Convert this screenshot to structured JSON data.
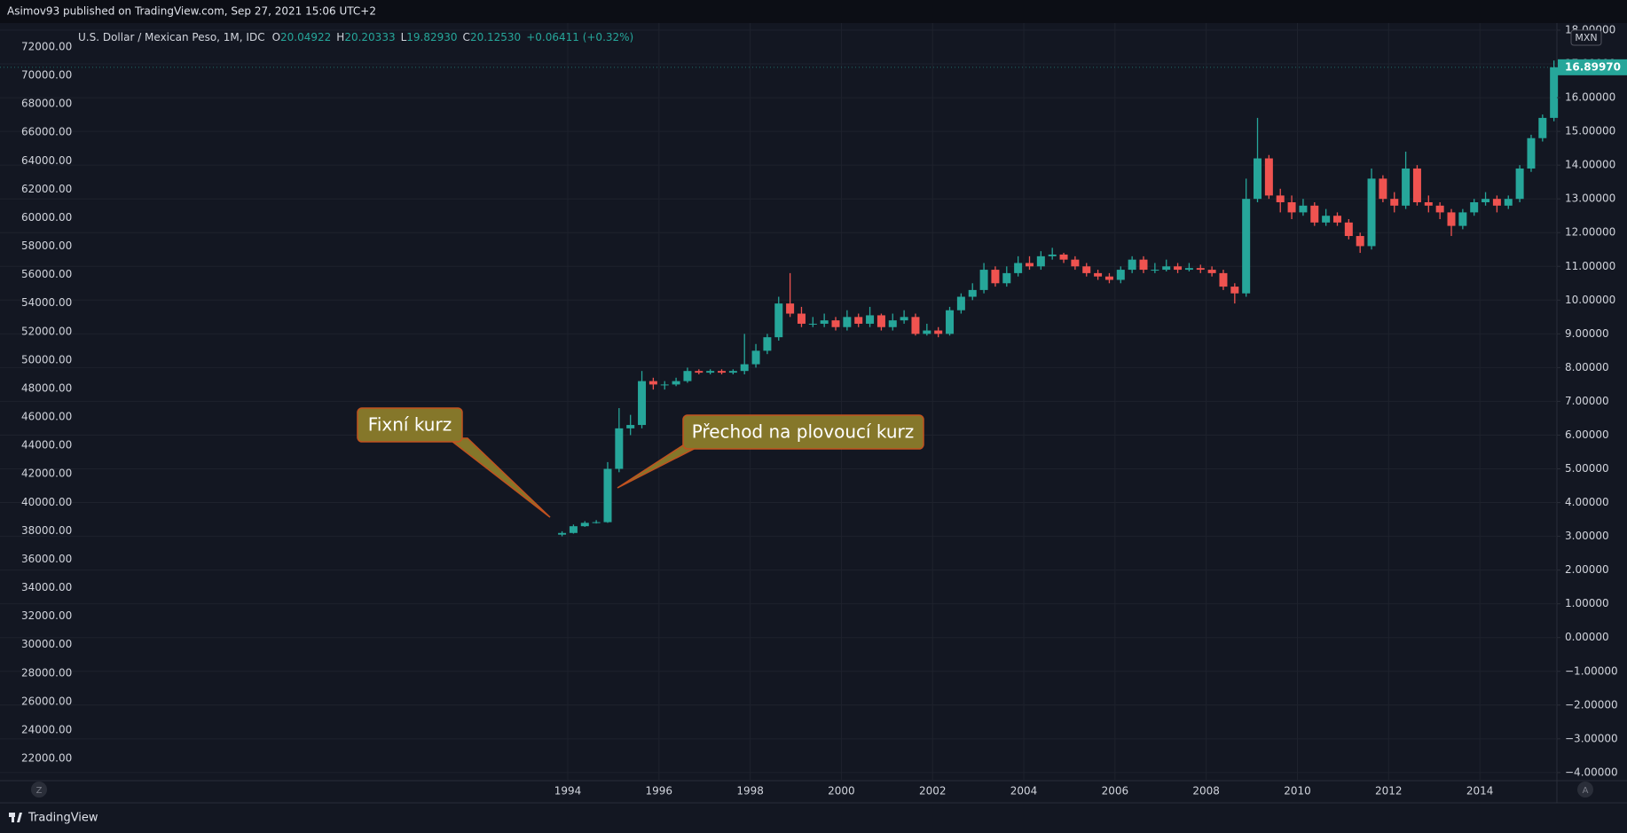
{
  "header": {
    "text": "Asimov93 published on TradingView.com, Sep 27, 2021 15:06 UTC+2"
  },
  "legend": {
    "symbol": "U.S. Dollar / Mexican Peso, 1M, IDC",
    "ohlc": [
      {
        "label": "O",
        "value": "20.04922"
      },
      {
        "label": "H",
        "value": "20.20333"
      },
      {
        "label": "L",
        "value": "19.82930"
      },
      {
        "label": "C",
        "value": "20.12530"
      }
    ],
    "change": "+0.06411 (+0.32%)"
  },
  "currency_badge": "MXN",
  "annotations": [
    "Fixní kurz",
    "Přechod na plovoucí kurz"
  ],
  "footer": {
    "logo": "TradingView",
    "left_button": "Z",
    "right_button": "A"
  },
  "chart_data": {
    "type": "candlestick",
    "up_color": "#26a69a",
    "down_color": "#ef5350",
    "grid": true,
    "last_price": {
      "value": 16.8997,
      "label": "16.89970"
    },
    "x": [
      1993.875,
      1994.125,
      1994.375,
      1994.625,
      1994.875,
      1995.125,
      1995.375,
      1995.625,
      1995.875,
      1996.125,
      1996.375,
      1996.625,
      1996.875,
      1997.125,
      1997.375,
      1997.625,
      1997.875,
      1998.125,
      1998.375,
      1998.625,
      1998.875,
      1999.125,
      1999.375,
      1999.625,
      1999.875,
      2000.125,
      2000.375,
      2000.625,
      2000.875,
      2001.125,
      2001.375,
      2001.625,
      2001.875,
      2002.125,
      2002.375,
      2002.625,
      2002.875,
      2003.125,
      2003.375,
      2003.625,
      2003.875,
      2004.125,
      2004.375,
      2004.625,
      2004.875,
      2005.125,
      2005.375,
      2005.625,
      2005.875,
      2006.125,
      2006.375,
      2006.625,
      2006.875,
      2007.125,
      2007.375,
      2007.625,
      2007.875,
      2008.125,
      2008.375,
      2008.625,
      2008.875,
      2009.125,
      2009.375,
      2009.625,
      2009.875,
      2010.125,
      2010.375,
      2010.625,
      2010.875,
      2011.125,
      2011.375,
      2011.625,
      2011.875,
      2012.125,
      2012.375,
      2012.625,
      2012.875,
      2013.125,
      2013.375,
      2013.625,
      2013.875,
      2014.125,
      2014.375,
      2014.625,
      2014.875,
      2015.125,
      2015.375,
      2015.625
    ],
    "open": [
      3.05,
      3.1,
      3.3,
      3.4,
      3.42,
      5.0,
      6.2,
      6.3,
      7.6,
      7.5,
      7.5,
      7.6,
      7.9,
      7.85,
      7.9,
      7.85,
      7.9,
      8.1,
      8.5,
      8.9,
      9.9,
      9.6,
      9.3,
      9.3,
      9.4,
      9.2,
      9.5,
      9.3,
      9.55,
      9.2,
      9.4,
      9.5,
      9.0,
      9.1,
      9.0,
      9.7,
      10.1,
      10.3,
      10.9,
      10.5,
      10.8,
      11.1,
      11.0,
      11.3,
      11.35,
      11.2,
      11.0,
      10.8,
      10.7,
      10.6,
      10.9,
      11.2,
      10.9,
      10.9,
      11.0,
      10.9,
      10.95,
      10.9,
      10.8,
      10.4,
      10.2,
      13.0,
      14.2,
      13.1,
      12.9,
      12.6,
      12.8,
      12.3,
      12.5,
      12.3,
      11.9,
      11.6,
      13.6,
      13.0,
      12.8,
      13.9,
      12.9,
      12.8,
      12.6,
      12.2,
      12.6,
      12.9,
      13.0,
      12.8,
      13.0,
      13.9,
      14.8,
      15.4
    ],
    "high": [
      3.15,
      3.35,
      3.45,
      3.48,
      5.2,
      6.8,
      6.6,
      7.9,
      7.7,
      7.6,
      7.7,
      8.0,
      7.95,
      7.95,
      7.95,
      7.95,
      9.0,
      8.7,
      9.0,
      10.1,
      10.8,
      9.8,
      9.5,
      9.6,
      9.5,
      9.7,
      9.6,
      9.8,
      9.6,
      9.6,
      9.7,
      9.6,
      9.3,
      9.2,
      9.8,
      10.2,
      10.5,
      11.1,
      11.0,
      11.0,
      11.3,
      11.3,
      11.45,
      11.55,
      11.4,
      11.3,
      11.1,
      10.9,
      10.8,
      11.0,
      11.3,
      11.3,
      11.1,
      11.2,
      11.1,
      11.1,
      11.05,
      11.0,
      10.9,
      10.5,
      13.6,
      15.4,
      14.3,
      13.3,
      13.1,
      13.0,
      12.9,
      12.7,
      12.6,
      12.4,
      12.0,
      13.9,
      13.7,
      13.2,
      14.4,
      14.0,
      13.1,
      12.9,
      12.7,
      12.7,
      13.0,
      13.2,
      13.1,
      13.1,
      14.0,
      14.9,
      15.5,
      17.1
    ],
    "low": [
      3.0,
      3.08,
      3.28,
      3.38,
      3.4,
      4.9,
      6.0,
      6.2,
      7.35,
      7.35,
      7.45,
      7.55,
      7.8,
      7.8,
      7.8,
      7.8,
      7.8,
      8.0,
      8.4,
      8.8,
      9.5,
      9.2,
      9.2,
      9.2,
      9.1,
      9.1,
      9.2,
      9.2,
      9.1,
      9.1,
      9.3,
      8.95,
      8.95,
      8.9,
      8.95,
      9.6,
      10.0,
      10.2,
      10.4,
      10.4,
      10.7,
      10.9,
      10.9,
      11.2,
      11.1,
      10.9,
      10.7,
      10.6,
      10.5,
      10.5,
      10.8,
      10.8,
      10.8,
      10.85,
      10.8,
      10.85,
      10.8,
      10.7,
      10.3,
      9.9,
      10.1,
      12.9,
      13.0,
      12.6,
      12.4,
      12.5,
      12.2,
      12.2,
      12.2,
      11.8,
      11.4,
      11.5,
      12.9,
      12.6,
      12.7,
      12.8,
      12.6,
      12.4,
      11.9,
      12.1,
      12.5,
      12.8,
      12.6,
      12.7,
      12.9,
      13.8,
      14.7,
      15.3
    ],
    "close": [
      3.1,
      3.3,
      3.4,
      3.42,
      5.0,
      6.2,
      6.3,
      7.6,
      7.5,
      7.5,
      7.6,
      7.9,
      7.85,
      7.9,
      7.85,
      7.9,
      8.1,
      8.5,
      8.9,
      9.9,
      9.6,
      9.3,
      9.3,
      9.4,
      9.2,
      9.5,
      9.3,
      9.55,
      9.2,
      9.4,
      9.5,
      9.0,
      9.1,
      9.0,
      9.7,
      10.1,
      10.3,
      10.9,
      10.5,
      10.8,
      11.1,
      11.0,
      11.3,
      11.35,
      11.2,
      11.0,
      10.8,
      10.7,
      10.6,
      10.9,
      11.2,
      10.9,
      10.9,
      11.0,
      10.9,
      10.95,
      10.9,
      10.8,
      10.4,
      10.2,
      13.0,
      14.2,
      13.1,
      12.9,
      12.6,
      12.8,
      12.3,
      12.5,
      12.3,
      11.9,
      11.6,
      13.6,
      13.0,
      12.8,
      13.9,
      12.9,
      12.8,
      12.6,
      12.2,
      12.6,
      12.9,
      13.0,
      12.8,
      13.0,
      13.9,
      14.8,
      15.4,
      16.9
    ],
    "xlim": [
      1981.55,
      2015.69
    ],
    "xticks": [
      1994,
      1996,
      1998,
      2000,
      2002,
      2004,
      2006,
      2008,
      2010,
      2012,
      2014
    ],
    "ylim": [
      -4.24,
      18.21
    ],
    "yticks": [
      {
        "value": 18,
        "label": "18.00000"
      },
      {
        "value": 17,
        "label": "17.00000"
      },
      {
        "value": 16,
        "label": "16.00000"
      },
      {
        "value": 15,
        "label": "15.00000"
      },
      {
        "value": 14,
        "label": "14.00000"
      },
      {
        "value": 13,
        "label": "13.00000"
      },
      {
        "value": 12,
        "label": "12.00000"
      },
      {
        "value": 11,
        "label": "11.00000"
      },
      {
        "value": 10,
        "label": "10.00000"
      },
      {
        "value": 9,
        "label": "9.00000"
      },
      {
        "value": 8,
        "label": "8.00000"
      },
      {
        "value": 7,
        "label": "7.00000"
      },
      {
        "value": 6,
        "label": "6.00000"
      },
      {
        "value": 5,
        "label": "5.00000"
      },
      {
        "value": 4,
        "label": "4.00000"
      },
      {
        "value": 3,
        "label": "3.00000"
      },
      {
        "value": 2,
        "label": "2.00000"
      },
      {
        "value": 1,
        "label": "1.00000"
      },
      {
        "value": 0,
        "label": "0.00000"
      },
      {
        "value": -1,
        "label": "−1.00000"
      },
      {
        "value": -2,
        "label": "−2.00000"
      },
      {
        "value": -3,
        "label": "−3.00000"
      },
      {
        "value": -4,
        "label": "−4.00000"
      }
    ],
    "y2lim": [
      20441,
      73683
    ],
    "y2ticks": [
      {
        "value": 72000,
        "label": "72000.00"
      },
      {
        "value": 70000,
        "label": "70000.00"
      },
      {
        "value": 68000,
        "label": "68000.00"
      },
      {
        "value": 66000,
        "label": "66000.00"
      },
      {
        "value": 64000,
        "label": "64000.00"
      },
      {
        "value": 62000,
        "label": "62000.00"
      },
      {
        "value": 60000,
        "label": "60000.00"
      },
      {
        "value": 58000,
        "label": "58000.00"
      },
      {
        "value": 56000,
        "label": "56000.00"
      },
      {
        "value": 54000,
        "label": "54000.00"
      },
      {
        "value": 52000,
        "label": "52000.00"
      },
      {
        "value": 50000,
        "label": "50000.00"
      },
      {
        "value": 48000,
        "label": "48000.00"
      },
      {
        "value": 46000,
        "label": "46000.00"
      },
      {
        "value": 44000,
        "label": "44000.00"
      },
      {
        "value": 42000,
        "label": "42000.00"
      },
      {
        "value": 40000,
        "label": "40000.00"
      },
      {
        "value": 38000,
        "label": "38000.00"
      },
      {
        "value": 36000,
        "label": "36000.00"
      },
      {
        "value": 34000,
        "label": "34000.00"
      },
      {
        "value": 32000,
        "label": "32000.00"
      },
      {
        "value": 30000,
        "label": "30000.00"
      },
      {
        "value": 28000,
        "label": "28000.00"
      },
      {
        "value": 26000,
        "label": "26000.00"
      },
      {
        "value": 24000,
        "label": "24000.00"
      },
      {
        "value": 22000,
        "label": "22000.00"
      }
    ]
  }
}
